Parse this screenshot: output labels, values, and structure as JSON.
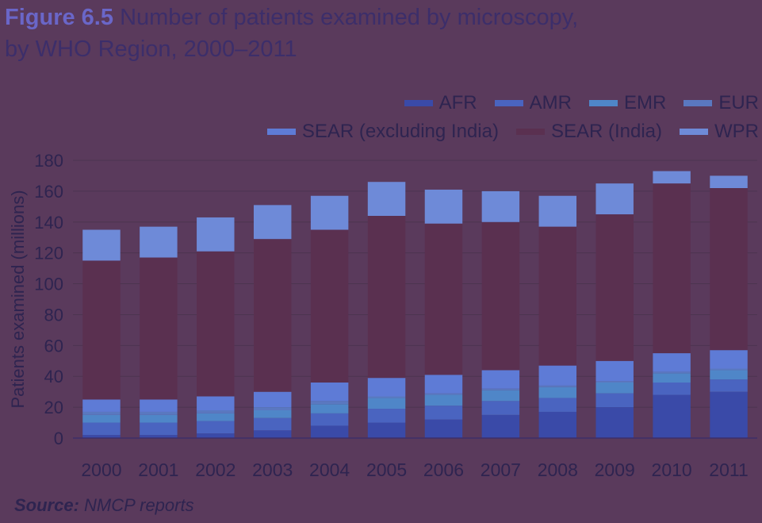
{
  "figure": {
    "label": "Figure 6.5",
    "title_line1": "Number of patients examined by microscopy,",
    "title_line2": "by WHO Region, 2000–2011"
  },
  "source": {
    "label": "Source:",
    "text": "NMCP reports"
  },
  "colors": {
    "AFR": "#3a4aa8",
    "AMR": "#4a64c0",
    "EMR": "#4f86c8",
    "EUR": "#5a78c0",
    "SEAR (excluding India)": "#5e7bd6",
    "SEAR (India)": "#5a3050",
    "WPR": "#6e8ad8"
  },
  "chart_data": {
    "type": "bar",
    "stacked": true,
    "ylabel": "Patients examined (millions)",
    "xlabel": "",
    "ylim": [
      0,
      180
    ],
    "yticks": [
      0,
      20,
      40,
      60,
      80,
      100,
      120,
      140,
      160,
      180
    ],
    "grid": true,
    "legend_position": "top-right",
    "categories": [
      "2000",
      "2001",
      "2002",
      "2003",
      "2004",
      "2005",
      "2006",
      "2007",
      "2008",
      "2009",
      "2010",
      "2011"
    ],
    "series": [
      {
        "name": "AFR",
        "values": [
          2,
          2,
          3,
          5,
          8,
          10,
          12,
          15,
          17,
          20,
          28,
          30
        ]
      },
      {
        "name": "AMR",
        "values": [
          8,
          8,
          8,
          8,
          8,
          9,
          9,
          9,
          9,
          9,
          8,
          8
        ]
      },
      {
        "name": "EMR",
        "values": [
          5,
          5,
          5,
          5,
          6,
          7,
          7,
          7,
          7,
          7,
          6,
          6
        ]
      },
      {
        "name": "EUR",
        "values": [
          2,
          2,
          2,
          2,
          2,
          1,
          1,
          1,
          1,
          1,
          1,
          1
        ]
      },
      {
        "name": "SEAR (excluding India)",
        "values": [
          8,
          8,
          9,
          10,
          12,
          12,
          12,
          12,
          13,
          13,
          12,
          12
        ]
      },
      {
        "name": "SEAR (India)",
        "values": [
          90,
          92,
          94,
          99,
          99,
          105,
          98,
          96,
          90,
          95,
          110,
          105
        ]
      },
      {
        "name": "WPR",
        "values": [
          20,
          20,
          22,
          22,
          22,
          22,
          22,
          20,
          20,
          20,
          8,
          8
        ]
      }
    ]
  }
}
